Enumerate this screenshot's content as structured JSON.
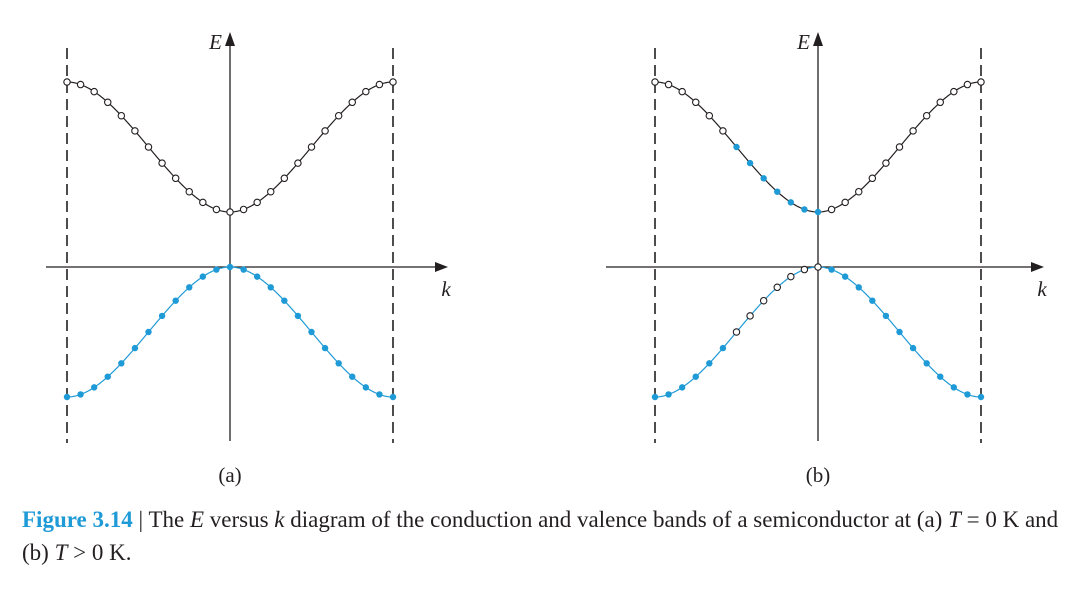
{
  "colors": {
    "ink": "#231f20",
    "accent": "#1e9ad6",
    "open_point_fill": "#ffffff"
  },
  "panels": [
    {
      "label": "(a)",
      "e_label": "E",
      "k_label": "k",
      "conduction_filled_indices": [],
      "valence_open_indices": []
    },
    {
      "label": "(b)",
      "e_label": "E",
      "k_label": "k",
      "conduction_filled_indices": [
        6,
        7,
        8,
        9,
        10,
        11,
        12
      ],
      "valence_open_indices": [
        6,
        7,
        8,
        9,
        10,
        11,
        12
      ]
    }
  ],
  "caption": {
    "label": "Figure 3.14",
    "separator": "|",
    "t1": "The ",
    "m1": "E",
    "t2": " versus ",
    "m2": "k",
    "t3": " diagram of the conduction and valence bands of a semiconductor at (a) ",
    "m3": "T",
    "t4": " = 0 K and (b) ",
    "m4": "T",
    "t5": " > 0 K."
  }
}
